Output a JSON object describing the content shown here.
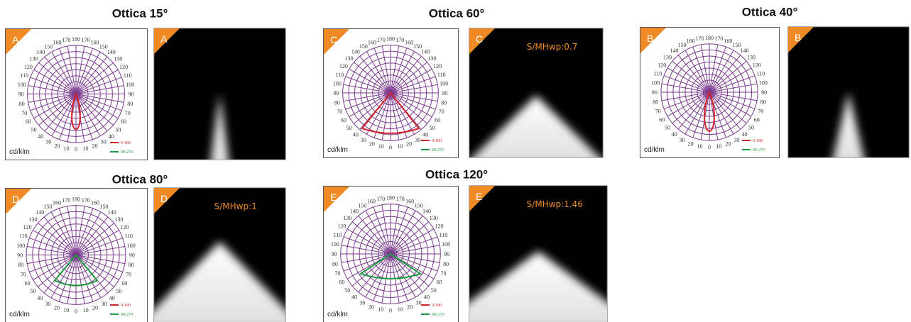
{
  "polar_angle_labels": [
    0,
    10,
    20,
    30,
    40,
    50,
    60,
    70,
    80,
    90,
    100,
    110,
    120,
    130,
    140,
    150,
    160,
    170,
    180
  ],
  "unit": "cd/klm",
  "legend": [
    "0-180",
    "90-270"
  ],
  "panels": [
    {
      "title": "Ottica 15°",
      "letter": "A"
    },
    {
      "title": "Ottica 60°",
      "letter": "C",
      "ratio": "S/MHwp:0.7"
    },
    {
      "title": "Ottica 40°",
      "letter": "B"
    },
    {
      "title": "Ottica 80°",
      "letter": "D",
      "ratio": "S/MHwp:1"
    },
    {
      "title": "Ottica 120°",
      "letter": "E",
      "ratio": "S/MHwp:1.46"
    }
  ]
}
